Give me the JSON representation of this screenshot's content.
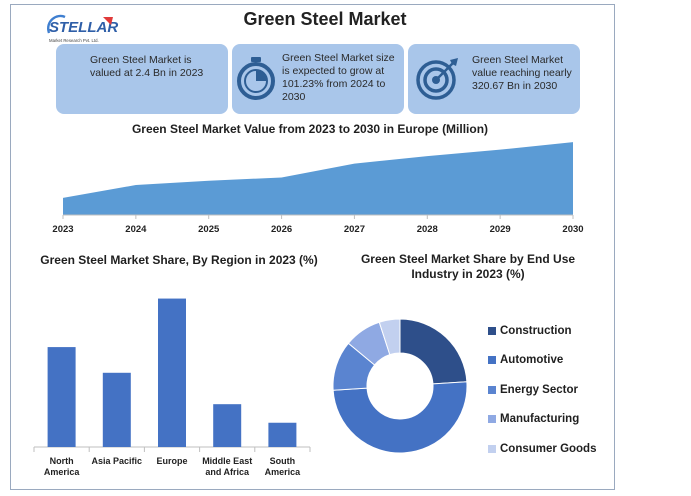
{
  "brand": {
    "name": "STELLAR",
    "tagline": "Market Research Pvt. Ltd."
  },
  "title": "Green Steel Market",
  "cards": [
    {
      "text": "Green Steel Market is valued at 2.4 Bn in 2023",
      "icon": "none"
    },
    {
      "text": "Green Steel Market size is expected to grow at 101.23% from 2024 to 2030",
      "icon": "stopwatch-icon"
    },
    {
      "text": "Green Steel Market value reaching nearly 320.67 Bn in 2030",
      "icon": "target-icon"
    }
  ],
  "colors": {
    "area": "#5b9bd5",
    "bar": "#4472c4",
    "card_bg": "#a9c6ea",
    "icon": "#2e5e94"
  },
  "chart_data": [
    {
      "type": "area",
      "title": "Green Steel Market Value from 2023 to 2030 in Europe (Million)",
      "x": [
        "2023",
        "2024",
        "2025",
        "2026",
        "2027",
        "2028",
        "2029",
        "2030"
      ],
      "values": [
        16,
        28,
        32,
        35,
        48,
        55,
        61,
        68
      ],
      "ylim": [
        0,
        70
      ],
      "grid": false,
      "color": "#5b9bd5"
    },
    {
      "type": "bar",
      "title": "Green Steel Market Share, By Region in 2023 (%)",
      "categories": [
        [
          "North",
          "America"
        ],
        [
          "Asia Pacific"
        ],
        [
          "Europe"
        ],
        [
          "Middle East",
          "and Africa"
        ],
        [
          "South",
          "America"
        ]
      ],
      "values": [
        35,
        26,
        52,
        15,
        8.5
      ],
      "ylim": [
        0,
        55
      ],
      "grid": false,
      "color": "#4472c4"
    },
    {
      "type": "pie",
      "title": "Green Steel Market Share by End Use Industry in 2023 (%)",
      "labels": [
        "Construction",
        "Automotive",
        "Energy Sector",
        "Manufacturing",
        "Consumer Goods"
      ],
      "values": [
        24,
        50,
        12,
        9,
        5
      ],
      "colors": [
        "#2e4f8a",
        "#4472c4",
        "#5a84d0",
        "#8fa9e3",
        "#c2d0ef"
      ],
      "donut": true,
      "legend": "right"
    }
  ]
}
